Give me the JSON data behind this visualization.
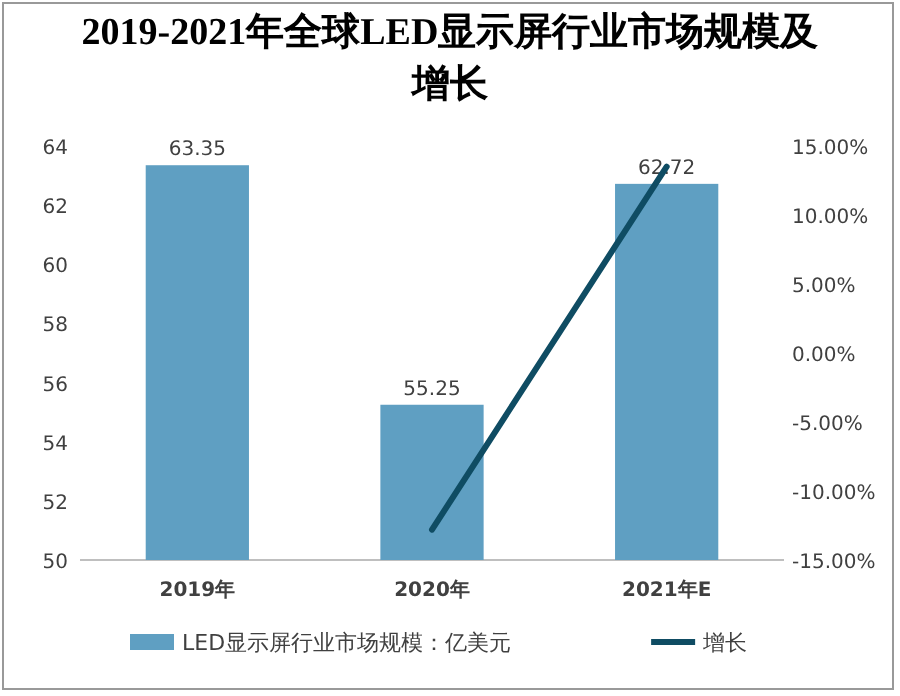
{
  "chart_data": {
    "type": "bar",
    "title": "2019-2021年全球LED显示屏行业市场规模及增长",
    "categories": [
      "2019年",
      "2020年",
      "2021年E"
    ],
    "series": [
      {
        "name": "LED显示屏行业市场规模：亿美元",
        "color": "#5f9fc2",
        "values": [
          63.35,
          55.25,
          62.72
        ],
        "value_labels": [
          "63.35",
          "55.25",
          "62.72"
        ]
      },
      {
        "name": "增长",
        "type": "line",
        "axis": "y2",
        "color": "#0f4c63",
        "values": [
          null,
          -12.8,
          13.5
        ]
      }
    ],
    "ylim": [
      50,
      64
    ],
    "yticks": [
      50,
      52,
      54,
      56,
      58,
      60,
      62,
      64
    ],
    "y2lim": [
      -15,
      15
    ],
    "y2ticks": [
      {
        "value": -15,
        "label": "-15.00%"
      },
      {
        "value": -10,
        "label": "-10.00%"
      },
      {
        "value": -5,
        "label": "-5.00%"
      },
      {
        "value": 0,
        "label": "0.00%"
      },
      {
        "value": 5,
        "label": "5.00%"
      },
      {
        "value": 10,
        "label": "10.00%"
      },
      {
        "value": 15,
        "label": "15.00%"
      }
    ],
    "legend": "bottom",
    "grid": false
  }
}
